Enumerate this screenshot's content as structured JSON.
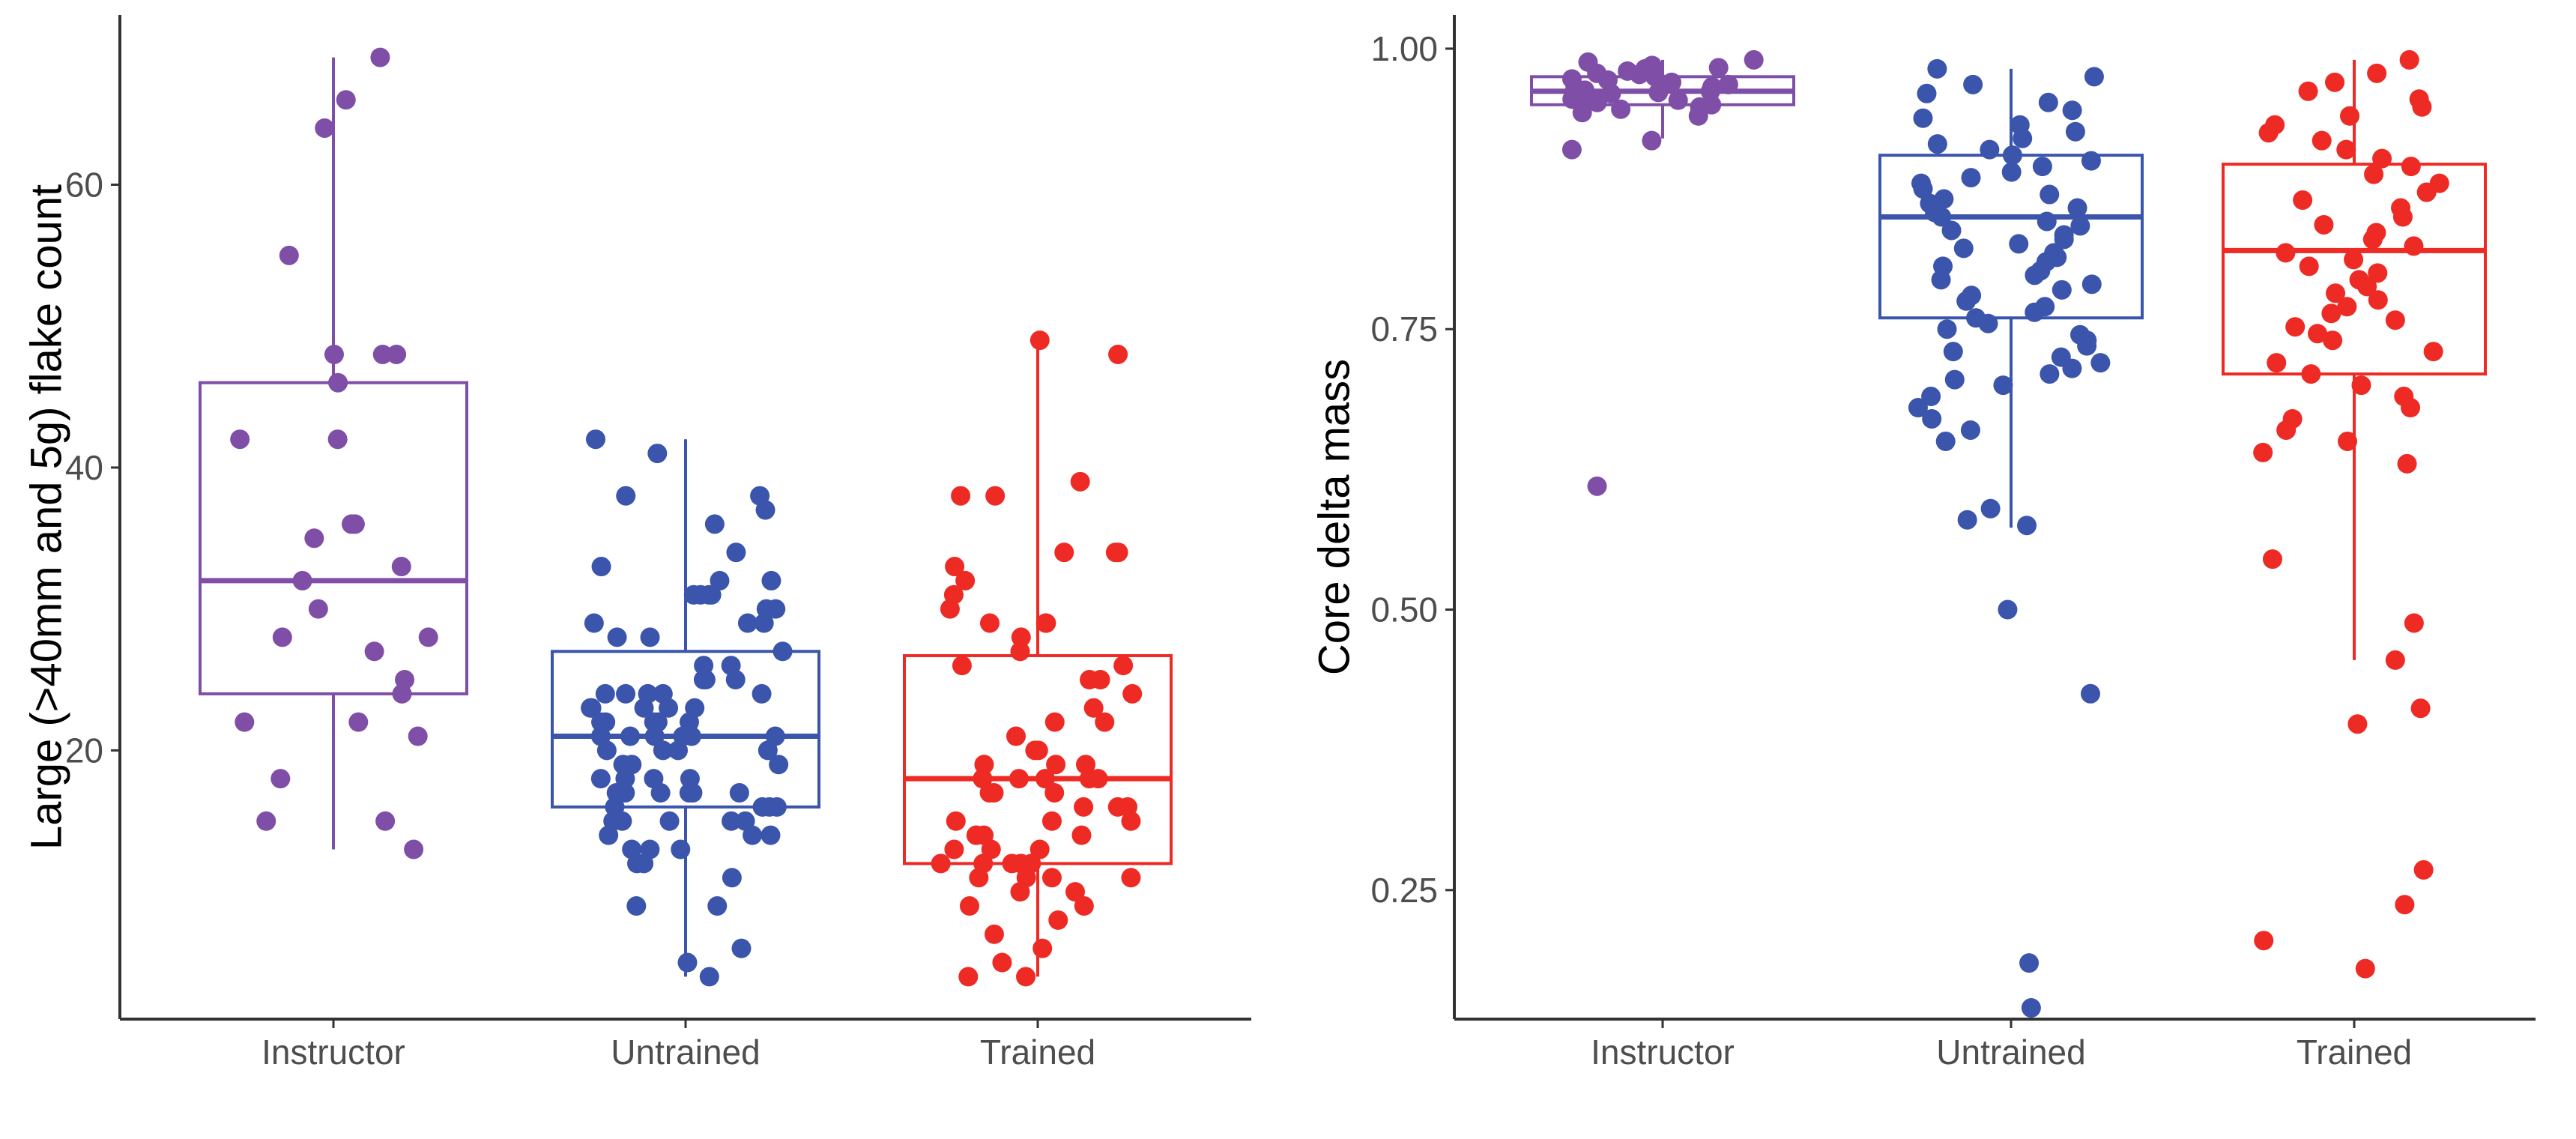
{
  "colors": {
    "Instructor": "#7f4fa8",
    "Untrained": "#3a55ab",
    "Trained": "#ee2a24",
    "axis": "#333333",
    "tick_text": "#4d4d4d"
  },
  "chart_data": [
    {
      "type": "box",
      "title": "",
      "xlabel": "",
      "ylabel": "Large (>40mm and 5g) flake count",
      "categories": [
        "Instructor",
        "Untrained",
        "Trained"
      ],
      "ylim": [
        1,
        72
      ],
      "yticks": [
        20,
        40,
        60
      ],
      "yticklabels": [
        "20",
        "40",
        "60"
      ],
      "grid": false,
      "legend": "none",
      "boxes": [
        {
          "name": "Instructor",
          "whisker_low": 13,
          "q1": 24,
          "median": 32,
          "q3": 46,
          "whisker_high": 69
        },
        {
          "name": "Untrained",
          "whisker_low": 4,
          "q1": 16,
          "median": 21,
          "q3": 27,
          "whisker_high": 42
        },
        {
          "name": "Trained",
          "whisker_low": 4,
          "q1": 12,
          "median": 18,
          "q3": 26.7,
          "whisker_high": 49
        }
      ],
      "points": [
        {
          "name": "Instructor",
          "values": [
            69,
            66,
            64,
            55,
            48,
            48,
            48,
            46,
            42,
            42,
            36,
            36,
            35,
            33,
            32,
            30,
            28,
            28,
            27,
            25,
            24,
            22,
            22,
            21,
            18,
            15,
            15,
            13
          ]
        },
        {
          "name": "Untrained",
          "values": [
            42,
            41,
            38,
            38,
            37,
            36,
            34,
            33,
            32,
            32,
            31,
            31,
            31,
            31,
            30,
            30,
            29,
            29,
            29,
            28,
            28,
            27,
            26,
            26,
            25,
            25,
            25,
            24,
            24,
            24,
            24,
            24,
            23,
            23,
            23,
            23,
            23,
            22,
            22,
            22,
            22,
            22,
            21,
            21,
            21,
            21,
            21,
            21,
            20,
            20,
            20,
            20,
            19,
            19,
            19,
            18,
            18,
            18,
            18,
            17,
            17,
            17,
            17,
            17,
            17,
            16,
            16,
            16,
            16,
            15,
            15,
            15,
            15,
            15,
            14,
            14,
            14,
            13,
            13,
            13,
            12,
            12,
            11,
            9,
            9,
            6,
            5,
            4
          ]
        },
        {
          "name": "Trained",
          "values": [
            49,
            48,
            39,
            38,
            38,
            34,
            34,
            34,
            33,
            32,
            31,
            30,
            29,
            29,
            29,
            28,
            27,
            26,
            26,
            25,
            25,
            24,
            23,
            22,
            22,
            21,
            20,
            20,
            19,
            19,
            19,
            18,
            18,
            18,
            18,
            18,
            17,
            17,
            17,
            16,
            16,
            16,
            15,
            15,
            15,
            14,
            14,
            14,
            14,
            13,
            13,
            13,
            12,
            12,
            12,
            12,
            12,
            11,
            11,
            11,
            11,
            10,
            10,
            9,
            9,
            8,
            7,
            6,
            5,
            4,
            4
          ]
        }
      ]
    },
    {
      "type": "box",
      "title": "",
      "xlabel": "",
      "ylabel": "Core delta mass",
      "categories": [
        "Instructor",
        "Untrained",
        "Trained"
      ],
      "ylim": [
        0.135,
        1.03
      ],
      "yticks": [
        0.25,
        0.5,
        0.75,
        1.0
      ],
      "yticklabels": [
        "0.25",
        "0.50",
        "0.75",
        "1.00"
      ],
      "grid": false,
      "legend": "none",
      "boxes": [
        {
          "name": "Instructor",
          "whisker_low": 0.92,
          "q1": 0.95,
          "median": 0.962,
          "q3": 0.975,
          "whisker_high": 0.99
        },
        {
          "name": "Untrained",
          "whisker_low": 0.573,
          "q1": 0.76,
          "median": 0.85,
          "q3": 0.905,
          "whisker_high": 0.982
        },
        {
          "name": "Trained",
          "whisker_low": 0.455,
          "q1": 0.71,
          "median": 0.82,
          "q3": 0.897,
          "whisker_high": 0.99
        }
      ],
      "points": [
        {
          "name": "Instructor",
          "values": [
            0.99,
            0.988,
            0.985,
            0.983,
            0.982,
            0.98,
            0.978,
            0.977,
            0.975,
            0.973,
            0.972,
            0.97,
            0.968,
            0.966,
            0.965,
            0.963,
            0.962,
            0.961,
            0.96,
            0.958,
            0.957,
            0.955,
            0.954,
            0.952,
            0.95,
            0.948,
            0.946,
            0.943,
            0.94,
            0.918,
            0.91,
            0.61
          ]
        },
        {
          "name": "Untrained",
          "values": [
            0.982,
            0.975,
            0.968,
            0.96,
            0.952,
            0.945,
            0.938,
            0.932,
            0.926,
            0.92,
            0.915,
            0.91,
            0.905,
            0.9,
            0.895,
            0.89,
            0.885,
            0.88,
            0.875,
            0.87,
            0.866,
            0.862,
            0.858,
            0.854,
            0.85,
            0.846,
            0.842,
            0.838,
            0.834,
            0.83,
            0.826,
            0.822,
            0.818,
            0.814,
            0.81,
            0.806,
            0.802,
            0.798,
            0.794,
            0.79,
            0.785,
            0.78,
            0.775,
            0.77,
            0.765,
            0.76,
            0.755,
            0.75,
            0.745,
            0.74,
            0.735,
            0.73,
            0.725,
            0.72,
            0.715,
            0.71,
            0.705,
            0.7,
            0.69,
            0.68,
            0.67,
            0.66,
            0.65,
            0.59,
            0.58,
            0.575,
            0.5,
            0.425,
            0.185,
            0.145
          ]
        },
        {
          "name": "Trained",
          "values": [
            0.99,
            0.978,
            0.97,
            0.962,
            0.955,
            0.948,
            0.94,
            0.932,
            0.925,
            0.918,
            0.91,
            0.902,
            0.895,
            0.888,
            0.88,
            0.872,
            0.865,
            0.858,
            0.85,
            0.843,
            0.836,
            0.83,
            0.824,
            0.818,
            0.812,
            0.806,
            0.8,
            0.794,
            0.788,
            0.782,
            0.776,
            0.77,
            0.764,
            0.758,
            0.752,
            0.746,
            0.74,
            0.73,
            0.72,
            0.71,
            0.7,
            0.69,
            0.68,
            0.67,
            0.66,
            0.65,
            0.64,
            0.63,
            0.545,
            0.488,
            0.455,
            0.412,
            0.398,
            0.268,
            0.237,
            0.205,
            0.18
          ]
        }
      ]
    }
  ]
}
